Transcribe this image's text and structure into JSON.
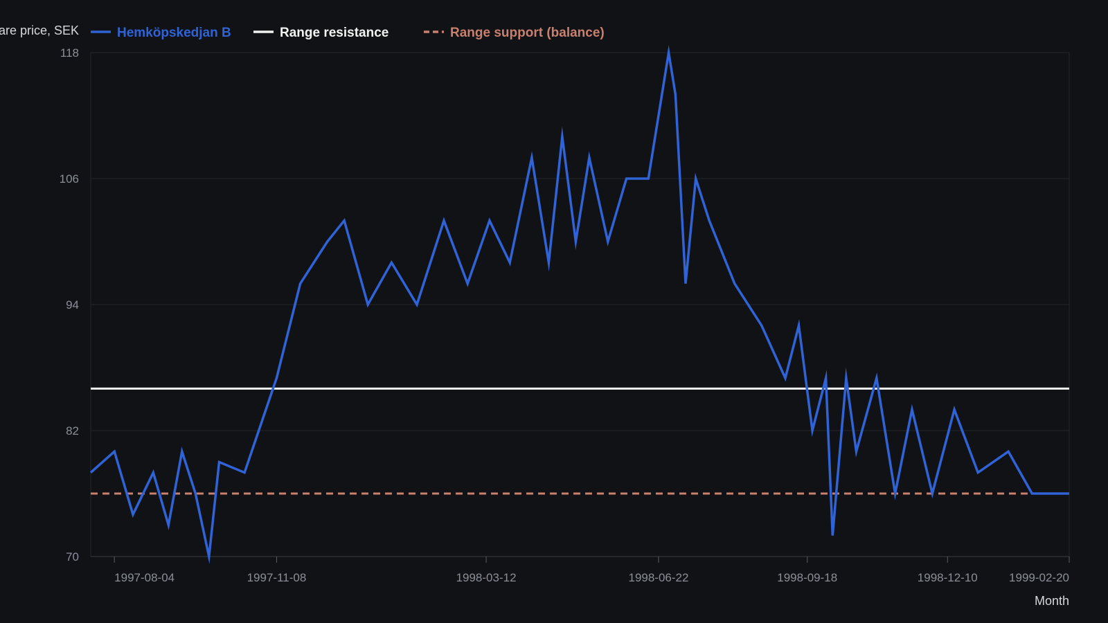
{
  "chart_data": {
    "type": "line",
    "xlabel": "Month",
    "ylabel": "Share price, SEK",
    "ylim": [
      70,
      118
    ],
    "yticks": [
      70,
      82,
      94,
      106,
      118
    ],
    "xlim": [
      "1997-07-21",
      "1999-02-20"
    ],
    "xticks": [
      "1997-08-04",
      "1997-11-08",
      "1998-03-12",
      "1998-06-22",
      "1998-09-18",
      "1998-12-10",
      "1999-02-20"
    ],
    "legend_position": "top-left",
    "grid": true,
    "series": [
      {
        "name": "Hemköpskedjan B",
        "color": "#2f63d6",
        "style": "solid",
        "x": [
          "1997-07-21",
          "1997-08-04",
          "1997-08-15",
          "1997-08-27",
          "1997-09-05",
          "1997-09-13",
          "1997-09-21",
          "1997-09-29",
          "1997-10-05",
          "1997-10-20",
          "1997-11-08",
          "1997-11-22",
          "1997-12-08",
          "1997-12-18",
          "1998-01-01",
          "1998-01-15",
          "1998-01-30",
          "1998-02-15",
          "1998-03-01",
          "1998-03-14",
          "1998-03-26",
          "1998-04-08",
          "1998-04-18",
          "1998-04-26",
          "1998-05-04",
          "1998-05-12",
          "1998-05-23",
          "1998-06-03",
          "1998-06-16",
          "1998-06-28",
          "1998-07-02",
          "1998-07-08",
          "1998-07-14",
          "1998-07-22",
          "1998-08-06",
          "1998-08-22",
          "1998-09-05",
          "1998-09-13",
          "1998-09-21",
          "1998-09-29",
          "1998-10-03",
          "1998-10-11",
          "1998-10-17",
          "1998-10-29",
          "1998-11-09",
          "1998-11-19",
          "1998-12-01",
          "1998-12-14",
          "1998-12-28",
          "1999-01-15",
          "1999-01-29",
          "1999-02-12",
          "1999-02-20"
        ],
        "y": [
          78,
          80,
          74,
          78,
          73,
          80,
          76,
          70,
          79,
          78,
          87,
          96,
          100,
          102,
          94,
          98,
          94,
          102,
          96,
          102,
          98,
          108,
          98,
          110,
          100,
          108,
          100,
          106,
          106,
          118,
          114,
          96,
          106,
          102,
          96,
          92,
          87,
          92,
          82,
          87,
          72,
          87,
          80,
          87,
          76,
          84,
          76,
          84,
          78,
          80,
          76,
          76,
          76
        ]
      },
      {
        "name": "Range resistance",
        "color": "#f2f2f2",
        "style": "solid",
        "value": 86
      },
      {
        "name": "Range support (balance)",
        "color": "#c9806e",
        "style": "dashed",
        "value": 76
      }
    ]
  }
}
